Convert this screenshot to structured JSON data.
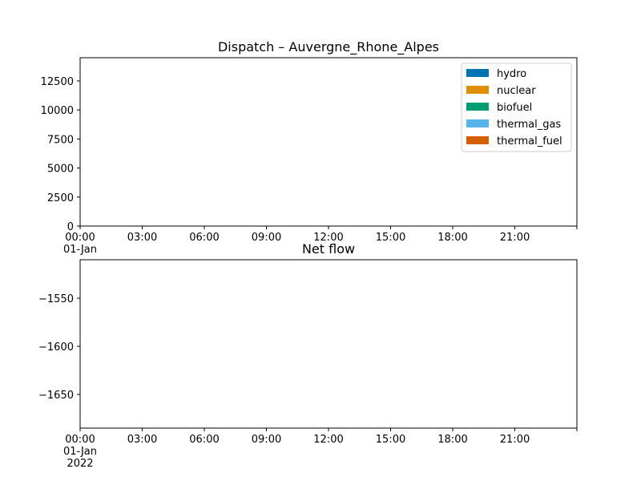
{
  "chart_data": [
    {
      "type": "area",
      "title": "Dispatch – Auvergne_Rhone_Alpes",
      "xlabel": "",
      "ylabel": "",
      "x_tick_labels": [
        "00:00\n01-Jan\n2022",
        "03:00",
        "06:00",
        "09:00",
        "12:00",
        "15:00",
        "18:00",
        "21:00",
        ""
      ],
      "x_range_hours": [
        0,
        24
      ],
      "ylim": [
        0,
        14500
      ],
      "y_ticks": [
        0,
        2500,
        5000,
        7500,
        10000,
        12500
      ],
      "grid": false,
      "legend_position": "top-right",
      "series": [
        {
          "name": "hydro",
          "color": "#0173b2",
          "values": []
        },
        {
          "name": "nuclear",
          "color": "#de8f05",
          "values": []
        },
        {
          "name": "biofuel",
          "color": "#029e73",
          "values": []
        },
        {
          "name": "thermal_gas",
          "color": "#56b4e9",
          "values": []
        },
        {
          "name": "thermal_fuel",
          "color": "#d55e00",
          "values": []
        }
      ]
    },
    {
      "type": "line",
      "title": "Net flow",
      "xlabel": "",
      "ylabel": "",
      "x_tick_labels": [
        "00:00\n01-Jan\n2022",
        "03:00",
        "06:00",
        "09:00",
        "12:00",
        "15:00",
        "18:00",
        "21:00",
        ""
      ],
      "x_range_hours": [
        0,
        24
      ],
      "ylim": [
        -1685,
        -1510
      ],
      "y_ticks": [
        -1650,
        -1600,
        -1550
      ],
      "grid": false,
      "series": [
        {
          "values": []
        }
      ]
    }
  ]
}
